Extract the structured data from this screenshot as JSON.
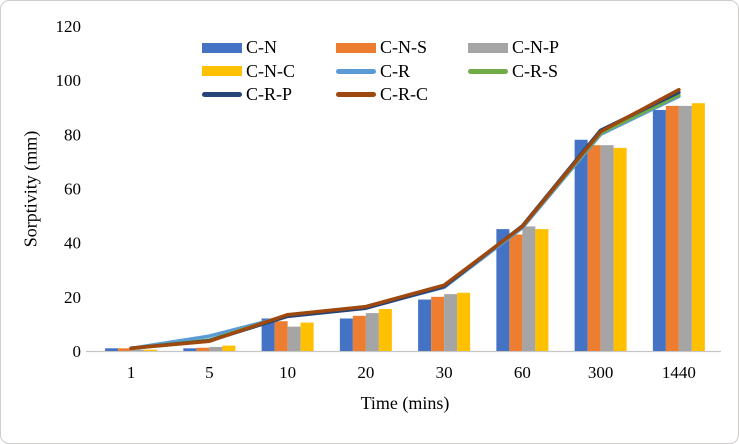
{
  "figure": {
    "background": "#ffffff",
    "border_color": "#cfcccc",
    "axis_line_color": "#c6c6c6",
    "text_color": "#000000"
  },
  "chart_data": {
    "type": "bar+line",
    "title": "",
    "xlabel": "Time (mins)",
    "ylabel": "Sorptivity (mm)",
    "categories": [
      "1",
      "5",
      "10",
      "20",
      "30",
      "60",
      "300",
      "1440"
    ],
    "ylim": [
      0,
      120
    ],
    "yticks": [
      0,
      20,
      40,
      60,
      80,
      100,
      120
    ],
    "grid": false,
    "legend_position": "top-center",
    "bar_series": [
      {
        "name": "C-N",
        "color": "#4472C4",
        "values": [
          1,
          1,
          12,
          12,
          19,
          45,
          78,
          89
        ]
      },
      {
        "name": "C-N-S",
        "color": "#ED7D31",
        "values": [
          1,
          1.2,
          11,
          13,
          20,
          43,
          76,
          90.5
        ]
      },
      {
        "name": "C-N-P",
        "color": "#A5A5A5",
        "values": [
          0.5,
          1.5,
          9,
          14,
          21,
          46,
          76,
          90.5
        ]
      },
      {
        "name": "C-N-C",
        "color": "#FFC000",
        "values": [
          0.5,
          2,
          10.5,
          15.5,
          21.5,
          45,
          75,
          91.5
        ]
      }
    ],
    "line_series": [
      {
        "name": "C-R",
        "color": "#5B9BD5",
        "values": [
          1,
          5.5,
          13,
          16,
          23.5,
          45.5,
          80,
          94
        ]
      },
      {
        "name": "C-R-S",
        "color": "#70AD47",
        "values": [
          1,
          4,
          13.2,
          16.2,
          24,
          46,
          80.5,
          94.5
        ]
      },
      {
        "name": "C-R-P",
        "color": "#264478",
        "values": [
          1,
          3.8,
          12.8,
          15.8,
          23.8,
          46.2,
          81.5,
          95.5
        ]
      },
      {
        "name": "C-R-C",
        "color": "#9E480E",
        "values": [
          1,
          3.6,
          13.4,
          16.4,
          24.3,
          46,
          81,
          96.5
        ]
      }
    ],
    "legend_order": [
      "C-N",
      "C-N-S",
      "C-N-P",
      "C-N-C",
      "C-R",
      "C-R-S",
      "C-R-P",
      "C-R-C"
    ]
  }
}
